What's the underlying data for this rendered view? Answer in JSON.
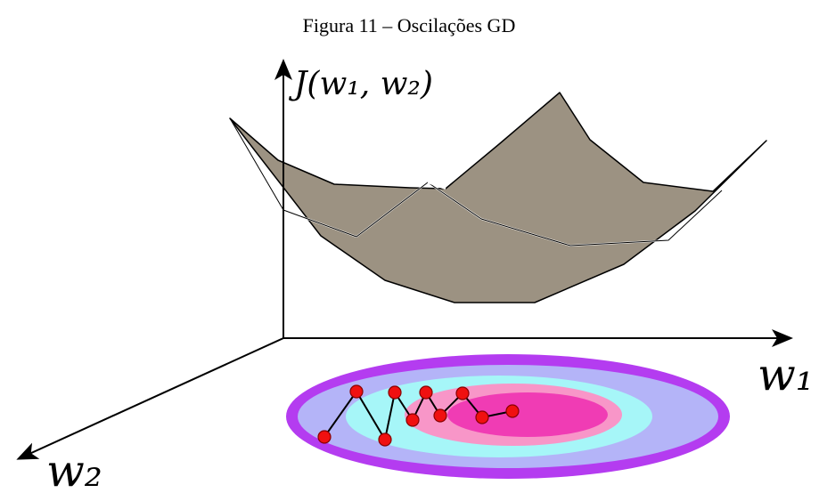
{
  "caption": "Figura 11 – Oscilações GD",
  "axes": {
    "vertical": "J(w₁, w₂)",
    "horizontal": "w₁",
    "depth": "w₂"
  }
}
